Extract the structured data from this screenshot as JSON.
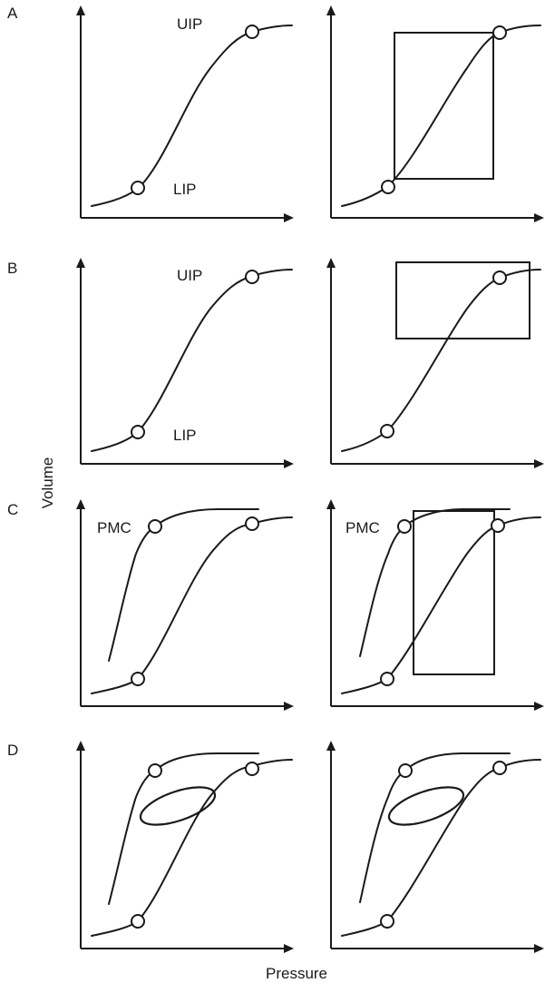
{
  "axis_titles": {
    "y": "Volume",
    "x": "Pressure"
  },
  "point_labels": {
    "uip": "UIP",
    "lip": "LIP",
    "pmc": "PMC"
  },
  "rows": [
    {
      "letter": "A",
      "left": {
        "labels": [
          "UIP",
          "LIP"
        ],
        "markers": 2,
        "box": false,
        "deflation_limb": false,
        "loop": false
      },
      "right": {
        "labels": [],
        "markers": 2,
        "box": true,
        "deflation_limb": false,
        "loop": false
      }
    },
    {
      "letter": "B",
      "left": {
        "labels": [
          "UIP",
          "LIP"
        ],
        "markers": 2,
        "box": false,
        "deflation_limb": false,
        "loop": false
      },
      "right": {
        "labels": [],
        "markers": 2,
        "box": true,
        "deflation_limb": false,
        "loop": false
      }
    },
    {
      "letter": "C",
      "left": {
        "labels": [
          "PMC"
        ],
        "markers": 3,
        "box": false,
        "deflation_limb": true,
        "loop": false
      },
      "right": {
        "labels": [
          "PMC"
        ],
        "markers": 3,
        "box": true,
        "deflation_limb": true,
        "loop": false
      }
    },
    {
      "letter": "D",
      "left": {
        "labels": [],
        "markers": 3,
        "box": false,
        "deflation_limb": true,
        "loop": true
      },
      "right": {
        "labels": [],
        "markers": 3,
        "box": false,
        "deflation_limb": true,
        "loop": true
      }
    }
  ]
}
